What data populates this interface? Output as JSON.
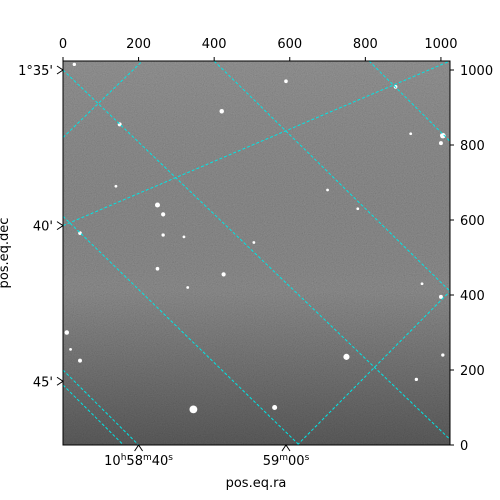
{
  "chart_data": {
    "type": "image",
    "xlabel": "pos.eq.ra",
    "ylabel": "pos.eq.dec",
    "pixel_axes": {
      "x_top_ticks": [
        0,
        200,
        400,
        600,
        800,
        1000
      ],
      "y_right_ticks": [
        0,
        200,
        400,
        600,
        800,
        1000
      ],
      "xlim": [
        0,
        1024
      ],
      "ylim": [
        0,
        1024
      ]
    },
    "world_axes": {
      "ra_tick_labels": [
        {
          "base": "10",
          "unit1": "h",
          "mid": "58",
          "unit2": "m",
          "sec": "40",
          "unit3": "s",
          "px": 200
        },
        {
          "base": "",
          "unit1": "",
          "mid": "59",
          "unit2": "m",
          "sec": "00",
          "unit3": "s",
          "px": 590
        }
      ],
      "dec_tick_labels": [
        {
          "text": "1°35'",
          "px": 1000
        },
        {
          "text": "40'",
          "px": 585
        },
        {
          "text": "45'",
          "px": 170
        }
      ]
    },
    "grid": {
      "on": true,
      "color": "#00e5e5",
      "style": "dashed",
      "lines_a": [
        {
          "x0": 0,
          "y0": 1000,
          "x1": 1024,
          "y1": 15
        },
        {
          "x0": 0,
          "y0": 610,
          "x1": 625,
          "y1": 0
        },
        {
          "x0": 0,
          "y0": 200,
          "x1": 200,
          "y1": 0
        },
        {
          "x0": 400,
          "y0": 1024,
          "x1": 1024,
          "y1": 410
        },
        {
          "x0": 810,
          "y0": 1024,
          "x1": 1024,
          "y1": 810
        }
      ],
      "lines_b": [
        {
          "x0": 0,
          "y0": 160,
          "x1": 160,
          "y1": 0
        },
        {
          "x0": 0,
          "y0": 585,
          "x1": 1024,
          "y1": 1024
        },
        {
          "x0": 0,
          "y0": 820,
          "x1": 210,
          "y1": 1024
        },
        {
          "x0": 620,
          "y0": 0,
          "x1": 1024,
          "y1": 410
        },
        {
          "x0": 400,
          "y0": 1024,
          "x1": 1024,
          "y1": 1024
        }
      ]
    },
    "stars": [
      {
        "x": 30,
        "y": 1015,
        "m": 1.2
      },
      {
        "x": 150,
        "y": 855,
        "m": 1.4
      },
      {
        "x": 420,
        "y": 890,
        "m": 1.6
      },
      {
        "x": 590,
        "y": 970,
        "m": 1.3
      },
      {
        "x": 880,
        "y": 955,
        "m": 1.3
      },
      {
        "x": 1005,
        "y": 825,
        "m": 2.0
      },
      {
        "x": 1000,
        "y": 805,
        "m": 1.4
      },
      {
        "x": 920,
        "y": 830,
        "m": 1.0
      },
      {
        "x": 140,
        "y": 690,
        "m": 1.0
      },
      {
        "x": 250,
        "y": 640,
        "m": 1.8
      },
      {
        "x": 265,
        "y": 615,
        "m": 1.5
      },
      {
        "x": 45,
        "y": 565,
        "m": 1.3
      },
      {
        "x": 265,
        "y": 560,
        "m": 1.2
      },
      {
        "x": 320,
        "y": 555,
        "m": 1.0
      },
      {
        "x": 505,
        "y": 540,
        "m": 1.0
      },
      {
        "x": 250,
        "y": 470,
        "m": 1.3
      },
      {
        "x": 425,
        "y": 455,
        "m": 1.5
      },
      {
        "x": 10,
        "y": 300,
        "m": 1.6
      },
      {
        "x": 45,
        "y": 225,
        "m": 1.4
      },
      {
        "x": 750,
        "y": 235,
        "m": 2.2
      },
      {
        "x": 1005,
        "y": 240,
        "m": 1.2
      },
      {
        "x": 935,
        "y": 175,
        "m": 1.2
      },
      {
        "x": 345,
        "y": 95,
        "m": 2.8
      },
      {
        "x": 560,
        "y": 100,
        "m": 1.8
      },
      {
        "x": 20,
        "y": 255,
        "m": 1.0
      },
      {
        "x": 1000,
        "y": 395,
        "m": 1.4
      },
      {
        "x": 950,
        "y": 430,
        "m": 1.0
      },
      {
        "x": 700,
        "y": 680,
        "m": 1.0
      },
      {
        "x": 780,
        "y": 630,
        "m": 1.0
      },
      {
        "x": 330,
        "y": 420,
        "m": 1.0
      }
    ]
  }
}
